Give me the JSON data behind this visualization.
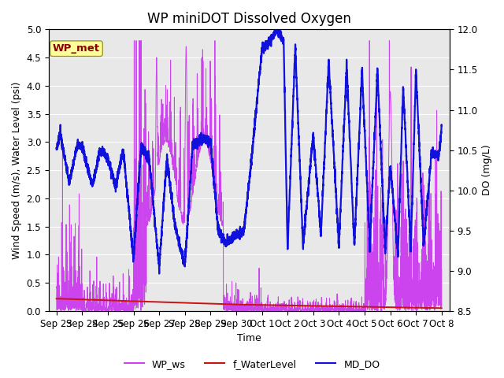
{
  "title": "WP miniDOT Dissolved Oxygen",
  "xlabel": "Time",
  "ylabel_left": "Wind Speed (m/s), Water Level (psi)",
  "ylabel_right": "DO (mg/L)",
  "ylim_left": [
    0,
    5.0
  ],
  "ylim_right": [
    8.5,
    12.0
  ],
  "yticks_left": [
    0.0,
    0.5,
    1.0,
    1.5,
    2.0,
    2.5,
    3.0,
    3.5,
    4.0,
    4.5,
    5.0
  ],
  "yticks_right": [
    8.5,
    9.0,
    9.5,
    10.0,
    10.5,
    11.0,
    11.5,
    12.0
  ],
  "xtick_labels": [
    "Sep 23",
    "Sep 24",
    "Sep 25",
    "Sep 26",
    "Sep 27",
    "Sep 28",
    "Sep 29",
    "Sep 30",
    "Oct 1",
    "Oct 2",
    "Oct 3",
    "Oct 4",
    "Oct 5",
    "Oct 6",
    "Oct 7",
    "Oct 8"
  ],
  "xtick_positions": [
    0,
    1,
    2,
    3,
    4,
    5,
    6,
    7,
    8,
    9,
    10,
    11,
    12,
    13,
    14,
    15
  ],
  "color_ws": "#CC44EE",
  "color_wl": "#CC1111",
  "color_do": "#1111DD",
  "annotation_text": "WP_met",
  "annotation_color": "#880000",
  "annotation_bg": "#FFFF99",
  "annotation_edge": "#999933",
  "bg_color": "#E8E8E8",
  "linewidth_ws": 0.7,
  "linewidth_wl": 1.4,
  "linewidth_do": 1.6,
  "title_fontsize": 12,
  "axis_fontsize": 9,
  "tick_fontsize": 8.5
}
